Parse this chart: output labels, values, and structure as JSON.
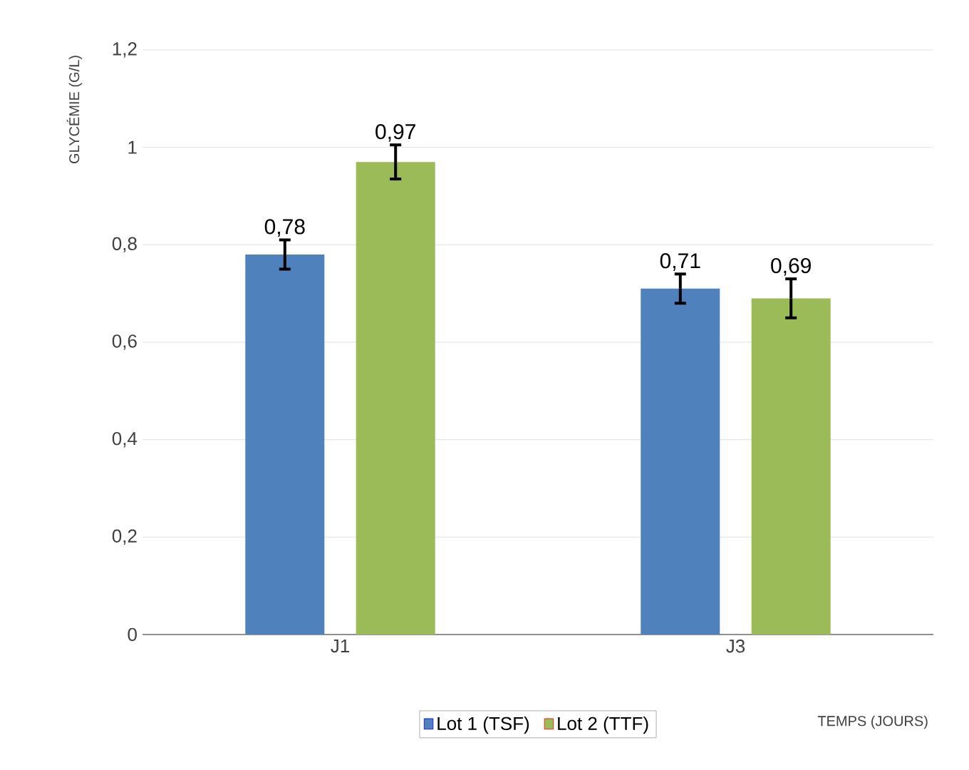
{
  "chart_data": {
    "type": "bar",
    "xlabel": "TEMPS (JOURS)",
    "ylabel": "GLYCÉMIE (G/L)",
    "categories": [
      "J1",
      "J3"
    ],
    "series": [
      {
        "name": "Lot 1 (TSF)",
        "color": "#4f81bd",
        "values": [
          0.78,
          0.71
        ],
        "errors": [
          0.03,
          0.03
        ],
        "value_labels": [
          "0,78",
          "0,71"
        ]
      },
      {
        "name": "Lot 2 (TTF)",
        "color": "#9bbb59",
        "values": [
          0.97,
          0.69
        ],
        "errors": [
          0.035,
          0.04
        ],
        "value_labels": [
          "0,97",
          "0,69"
        ]
      }
    ],
    "ylim": [
      0,
      1.2
    ],
    "yticks": [
      0,
      {
        "value": 0.2,
        "label": "0,2"
      },
      {
        "value": 0.4,
        "label": "0,4"
      },
      {
        "value": 0.6,
        "label": "0,6"
      },
      {
        "value": 0.8,
        "label": "0,8"
      },
      1,
      {
        "value": 1.2,
        "label": "1,2"
      }
    ],
    "grid": "y",
    "legend": "bottom"
  }
}
